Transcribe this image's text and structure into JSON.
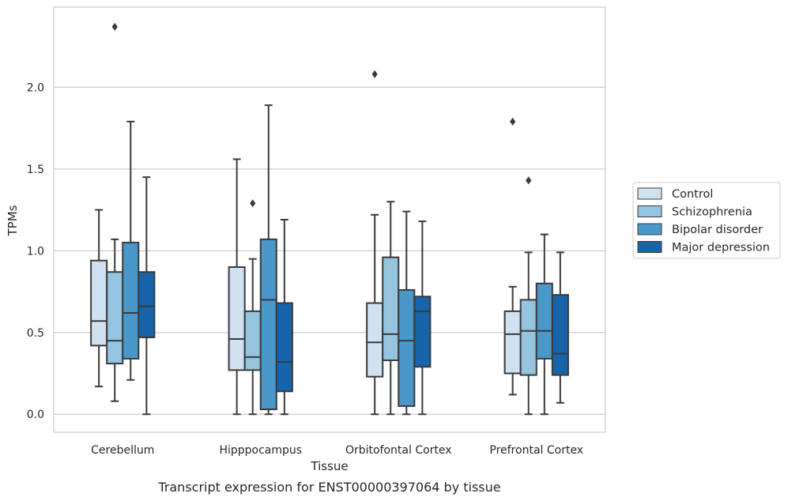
{
  "caption": "Transcript expression for ENST00000397064 by tissue",
  "chart_data": {
    "type": "box",
    "title": "",
    "xlabel": "Tissue",
    "ylabel": "TPMs",
    "ylim": [
      -0.11,
      2.49
    ],
    "yticks": [
      0.0,
      0.5,
      1.0,
      1.5,
      2.0
    ],
    "ytick_labels": [
      "0.0",
      "0.5",
      "1.0",
      "1.5",
      "2.0"
    ],
    "grid": "horizontal",
    "legend_position": "right",
    "categories": [
      "Cerebellum",
      "Hipppocampus",
      "Orbitofontal Cortex",
      "Prefrontal Cortex"
    ],
    "series": [
      {
        "name": "Control",
        "color": "#d0e1f2",
        "boxes": [
          {
            "whislo": 0.17,
            "q1": 0.42,
            "med": 0.57,
            "q3": 0.94,
            "whishi": 1.25,
            "fliers": []
          },
          {
            "whislo": 0.0,
            "q1": 0.27,
            "med": 0.46,
            "q3": 0.9,
            "whishi": 1.56,
            "fliers": []
          },
          {
            "whislo": 0.0,
            "q1": 0.23,
            "med": 0.44,
            "q3": 0.68,
            "whishi": 1.22,
            "fliers": [
              2.08
            ]
          },
          {
            "whislo": 0.12,
            "q1": 0.25,
            "med": 0.49,
            "q3": 0.63,
            "whishi": 0.78,
            "fliers": [
              1.79
            ]
          }
        ]
      },
      {
        "name": "Schizophrenia",
        "color": "#94c4df",
        "boxes": [
          {
            "whislo": 0.08,
            "q1": 0.31,
            "med": 0.45,
            "q3": 0.87,
            "whishi": 1.07,
            "fliers": [
              2.37
            ]
          },
          {
            "whislo": 0.0,
            "q1": 0.27,
            "med": 0.35,
            "q3": 0.63,
            "whishi": 0.95,
            "fliers": [
              1.29
            ]
          },
          {
            "whislo": 0.0,
            "q1": 0.33,
            "med": 0.49,
            "q3": 0.96,
            "whishi": 1.3,
            "fliers": []
          },
          {
            "whislo": 0.0,
            "q1": 0.24,
            "med": 0.51,
            "q3": 0.7,
            "whishi": 0.99,
            "fliers": [
              1.43
            ]
          }
        ]
      },
      {
        "name": "Bipolar disorder",
        "color": "#4a98c9",
        "boxes": [
          {
            "whislo": 0.21,
            "q1": 0.34,
            "med": 0.62,
            "q3": 1.05,
            "whishi": 1.79,
            "fliers": []
          },
          {
            "whislo": 0.0,
            "q1": 0.03,
            "med": 0.7,
            "q3": 1.07,
            "whishi": 1.89,
            "fliers": []
          },
          {
            "whislo": 0.0,
            "q1": 0.05,
            "med": 0.45,
            "q3": 0.76,
            "whishi": 1.24,
            "fliers": []
          },
          {
            "whislo": 0.0,
            "q1": 0.34,
            "med": 0.51,
            "q3": 0.8,
            "whishi": 1.1,
            "fliers": []
          }
        ]
      },
      {
        "name": "Major depression",
        "color": "#1764ab",
        "boxes": [
          {
            "whislo": 0.0,
            "q1": 0.47,
            "med": 0.66,
            "q3": 0.87,
            "whishi": 1.45,
            "fliers": []
          },
          {
            "whislo": 0.0,
            "q1": 0.14,
            "med": 0.32,
            "q3": 0.68,
            "whishi": 1.19,
            "fliers": []
          },
          {
            "whislo": 0.0,
            "q1": 0.29,
            "med": 0.63,
            "q3": 0.72,
            "whishi": 1.18,
            "fliers": []
          },
          {
            "whislo": 0.07,
            "q1": 0.24,
            "med": 0.37,
            "q3": 0.73,
            "whishi": 0.99,
            "fliers": []
          }
        ]
      }
    ]
  }
}
